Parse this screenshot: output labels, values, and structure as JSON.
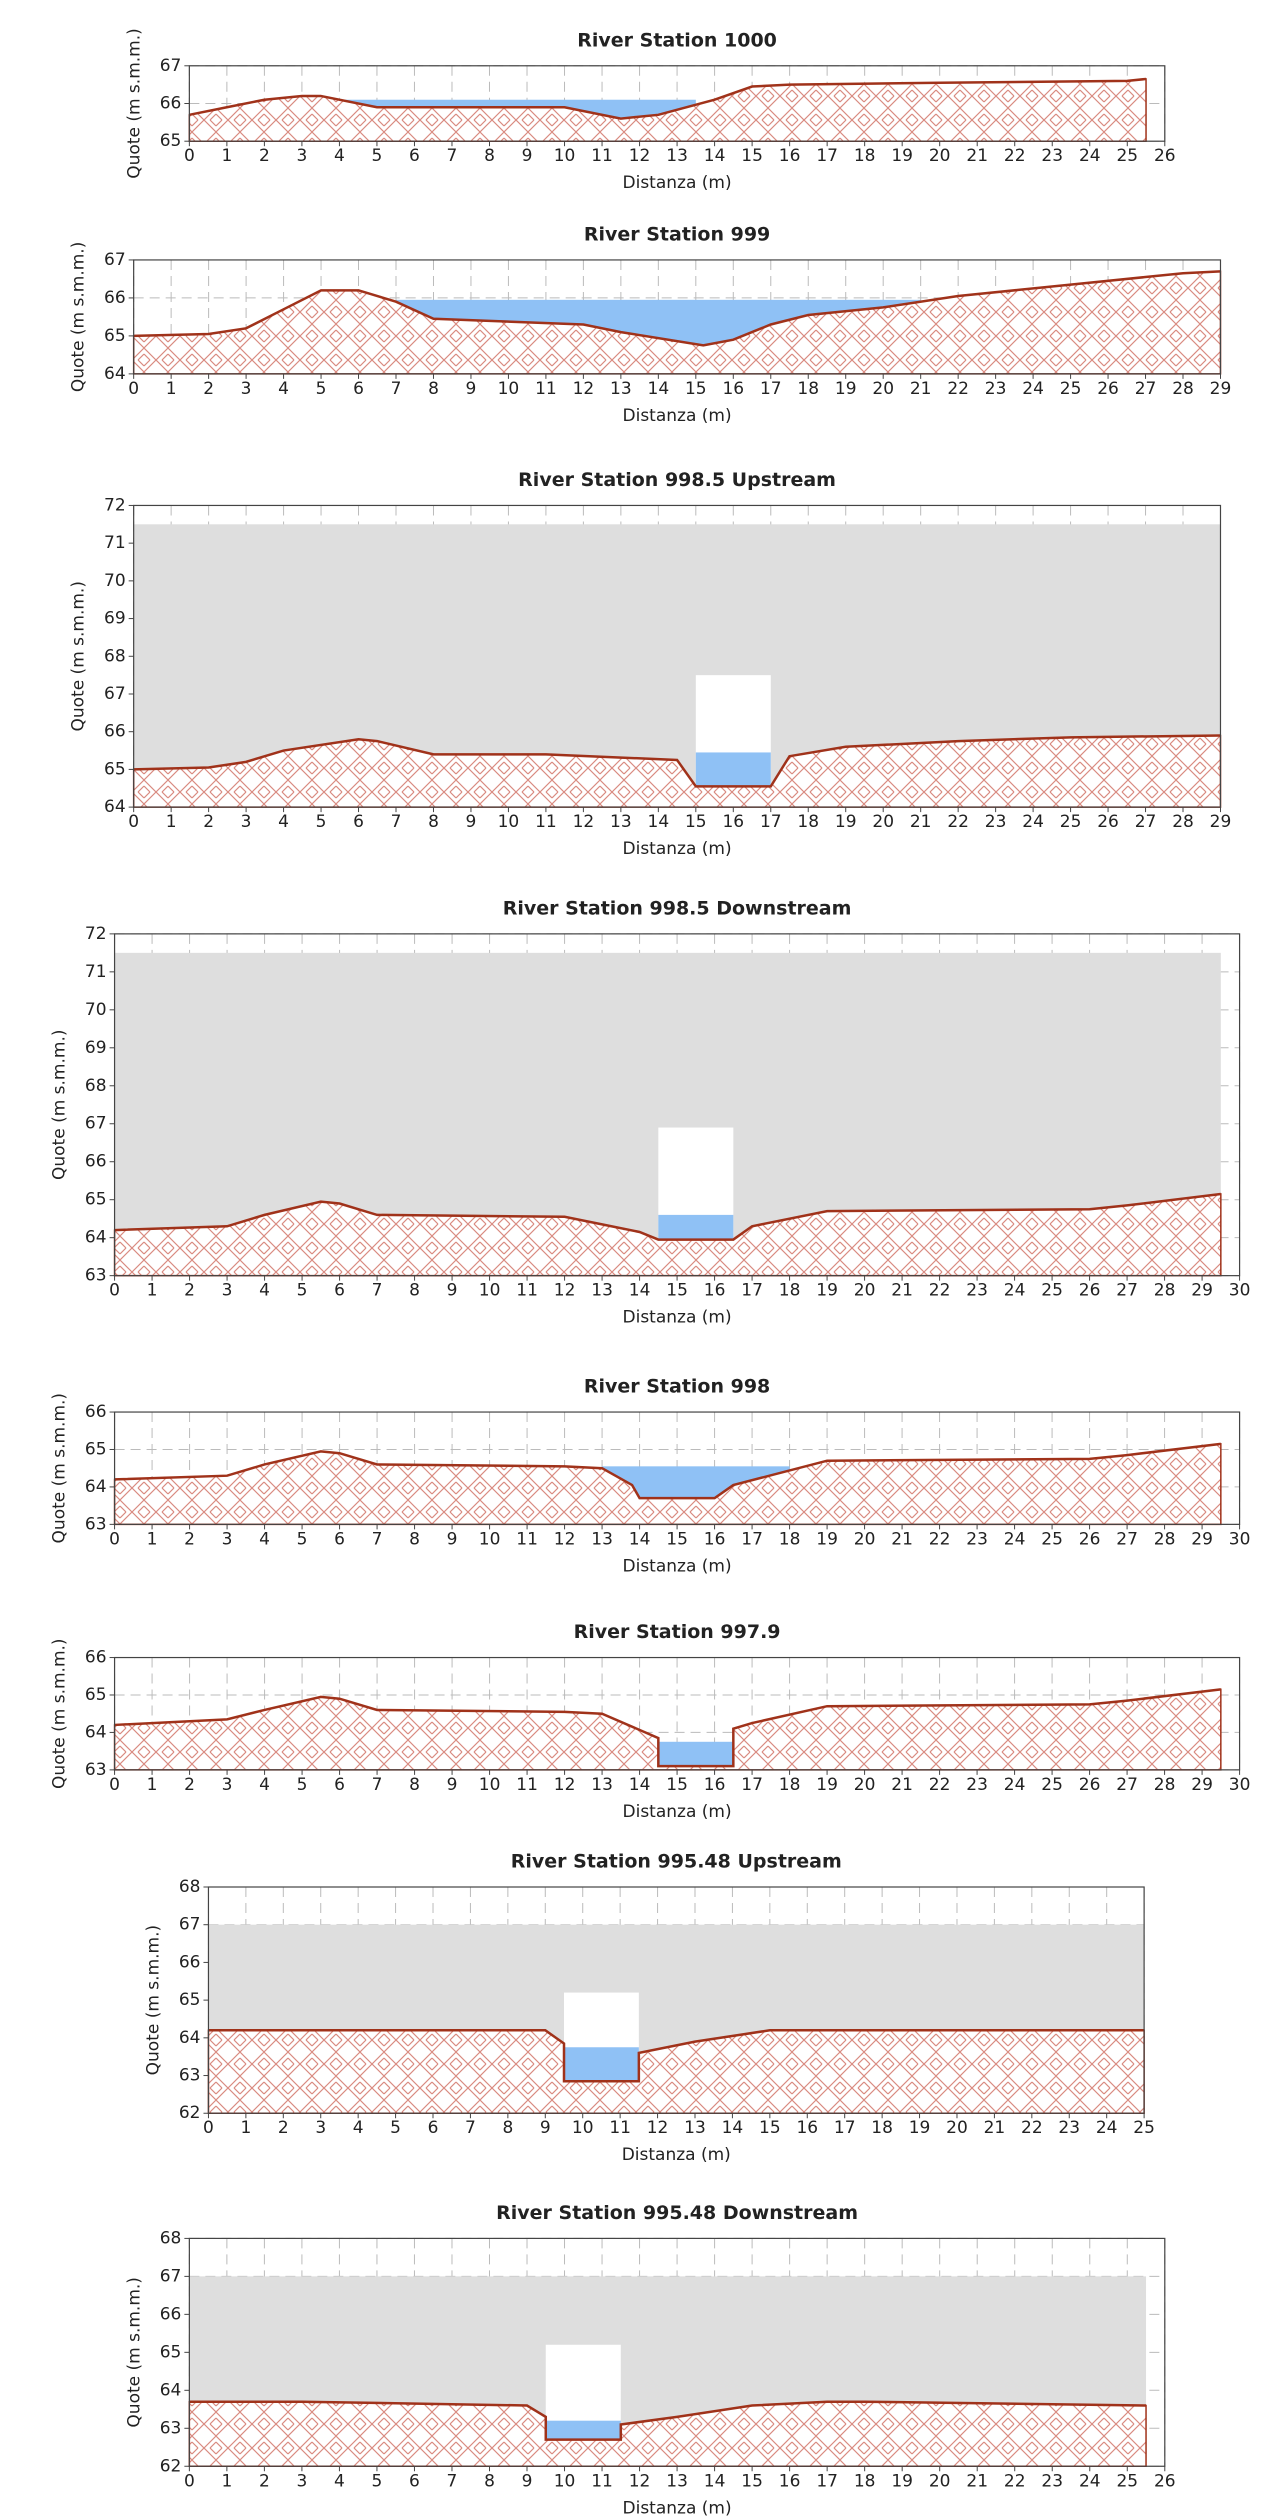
{
  "chart_data": [
    {
      "type": "area",
      "title": "River Station 1000",
      "xlabel": "Distanza  (m)",
      "ylabel": "Quote  (m s.m.m.)",
      "xlim": [
        0,
        26
      ],
      "ylim": [
        65,
        67
      ],
      "xticks": [
        0,
        1,
        2,
        3,
        4,
        5,
        6,
        7,
        8,
        9,
        10,
        11,
        12,
        13,
        14,
        15,
        16,
        17,
        18,
        19,
        20,
        21,
        22,
        23,
        24,
        25,
        26
      ],
      "yticks": [
        65,
        66,
        67
      ],
      "grid": true,
      "x": [
        0,
        1,
        2,
        3,
        3.5,
        5,
        10,
        11.5,
        12.5,
        14,
        15,
        16,
        20,
        25,
        25.5
      ],
      "values": [
        65.7,
        65.9,
        66.1,
        66.2,
        66.2,
        65.9,
        65.9,
        65.6,
        65.7,
        66.1,
        66.45,
        66.5,
        66.55,
        66.6,
        66.65
      ],
      "water": {
        "x": [
          3.9,
          13.5
        ],
        "level": 66.1
      }
    },
    {
      "type": "area",
      "title": "River Station 999",
      "xlabel": "Distanza  (m)",
      "ylabel": "Quote  (m s.m.m.)",
      "xlim": [
        0,
        29
      ],
      "ylim": [
        64,
        67
      ],
      "xticks": [
        0,
        1,
        2,
        3,
        4,
        5,
        6,
        7,
        8,
        9,
        10,
        11,
        12,
        13,
        14,
        15,
        16,
        17,
        18,
        19,
        20,
        21,
        22,
        23,
        24,
        25,
        26,
        27,
        28,
        29
      ],
      "yticks": [
        64,
        65,
        66,
        67
      ],
      "grid": true,
      "x": [
        0,
        2,
        3,
        4,
        5,
        6,
        7,
        8,
        12,
        13,
        15.2,
        16,
        17,
        18,
        20,
        22,
        25,
        28,
        29
      ],
      "values": [
        65.0,
        65.05,
        65.2,
        65.7,
        66.2,
        66.2,
        65.9,
        65.45,
        65.3,
        65.1,
        64.75,
        64.9,
        65.3,
        65.55,
        65.75,
        66.05,
        66.35,
        66.65,
        66.7
      ],
      "water": {
        "x": [
          7,
          21
        ],
        "level": 65.95
      }
    },
    {
      "type": "area",
      "title": "River Station 998.5 Upstream",
      "xlabel": "Distanza  (m)",
      "ylabel": "Quote  (m s.m.m.)",
      "xlim": [
        0,
        29
      ],
      "ylim": [
        64,
        72
      ],
      "xticks": [
        0,
        1,
        2,
        3,
        4,
        5,
        6,
        7,
        8,
        9,
        10,
        11,
        12,
        13,
        14,
        15,
        16,
        17,
        18,
        19,
        20,
        21,
        22,
        23,
        24,
        25,
        26,
        27,
        28,
        29
      ],
      "yticks": [
        64,
        65,
        66,
        67,
        68,
        69,
        70,
        71,
        72
      ],
      "grid": true,
      "x": [
        0,
        2,
        3,
        4,
        6,
        6.5,
        8,
        11,
        14.5,
        15,
        17,
        17.5,
        19,
        22,
        25,
        29
      ],
      "values": [
        65.0,
        65.05,
        65.2,
        65.5,
        65.8,
        65.75,
        65.4,
        65.4,
        65.25,
        64.55,
        64.55,
        65.35,
        65.6,
        65.75,
        65.85,
        65.9
      ],
      "deck": {
        "x": [
          0,
          29
        ],
        "top": 71.5
      },
      "opening": {
        "x": [
          15,
          17
        ],
        "top": 67.5
      },
      "water": {
        "x": [
          15,
          17
        ],
        "level": 65.45
      }
    },
    {
      "type": "area",
      "title": "River Station 998.5 Downstream",
      "xlabel": "Distanza  (m)",
      "ylabel": "Quote  (m s.m.m.)",
      "xlim": [
        0,
        30
      ],
      "ylim": [
        63,
        72
      ],
      "xticks": [
        0,
        1,
        2,
        3,
        4,
        5,
        6,
        7,
        8,
        9,
        10,
        11,
        12,
        13,
        14,
        15,
        16,
        17,
        18,
        19,
        20,
        21,
        22,
        23,
        24,
        25,
        26,
        27,
        28,
        29,
        30
      ],
      "yticks": [
        63,
        64,
        65,
        66,
        67,
        68,
        69,
        70,
        71,
        72
      ],
      "grid": true,
      "x": [
        0,
        3,
        4,
        5.5,
        6,
        7,
        12,
        13,
        14,
        14.5,
        16.5,
        17,
        19,
        26,
        27,
        29.5
      ],
      "values": [
        64.2,
        64.3,
        64.6,
        64.95,
        64.9,
        64.6,
        64.55,
        64.35,
        64.15,
        63.95,
        63.95,
        64.3,
        64.7,
        64.75,
        64.85,
        65.15
      ],
      "deck": {
        "x": [
          0,
          29.5
        ],
        "top": 71.5
      },
      "opening": {
        "x": [
          14.5,
          16.5
        ],
        "top": 66.9
      },
      "water": {
        "x": [
          14.5,
          16.5
        ],
        "level": 64.6
      }
    },
    {
      "type": "area",
      "title": "River Station 998",
      "xlabel": "Distanza  (m)",
      "ylabel": "Quote  (m s.m.m.)",
      "xlim": [
        0,
        30
      ],
      "ylim": [
        63,
        66
      ],
      "xticks": [
        0,
        1,
        2,
        3,
        4,
        5,
        6,
        7,
        8,
        9,
        10,
        11,
        12,
        13,
        14,
        15,
        16,
        17,
        18,
        19,
        20,
        21,
        22,
        23,
        24,
        25,
        26,
        27,
        28,
        29,
        30
      ],
      "yticks": [
        63,
        64,
        65,
        66
      ],
      "grid": true,
      "x": [
        0,
        3,
        4,
        5.5,
        6,
        7,
        12,
        13,
        13.8,
        14,
        16,
        16.5,
        19,
        26,
        27,
        29.5
      ],
      "values": [
        64.2,
        64.3,
        64.6,
        64.95,
        64.9,
        64.6,
        64.55,
        64.5,
        64.05,
        63.7,
        63.7,
        64.05,
        64.7,
        64.75,
        64.85,
        65.15
      ],
      "water": {
        "x": [
          13,
          18
        ],
        "level": 64.55
      }
    },
    {
      "type": "area",
      "title": "River Station 997.9",
      "xlabel": "Distanza  (m)",
      "ylabel": "Quote  (m s.m.m.)",
      "xlim": [
        0,
        30
      ],
      "ylim": [
        63,
        66
      ],
      "xticks": [
        0,
        1,
        2,
        3,
        4,
        5,
        6,
        7,
        8,
        9,
        10,
        11,
        12,
        13,
        14,
        15,
        16,
        17,
        18,
        19,
        20,
        21,
        22,
        23,
        24,
        25,
        26,
        27,
        28,
        29,
        30
      ],
      "yticks": [
        63,
        64,
        65,
        66
      ],
      "grid": true,
      "x": [
        0,
        3,
        4,
        5.5,
        6,
        7,
        12,
        13,
        14.5,
        14.5,
        16.5,
        16.5,
        17,
        19,
        26,
        27,
        29.5
      ],
      "values": [
        64.2,
        64.35,
        64.6,
        64.95,
        64.9,
        64.6,
        64.55,
        64.5,
        63.85,
        63.1,
        63.1,
        64.1,
        64.25,
        64.7,
        64.75,
        64.85,
        65.15
      ],
      "water": {
        "x": [
          14.5,
          16.5
        ],
        "level": 63.75
      }
    },
    {
      "type": "area",
      "title": "River Station 995.48 Upstream",
      "xlabel": "Distanza  (m)",
      "ylabel": "Quote  (m s.m.m.)",
      "xlim": [
        0,
        25
      ],
      "ylim": [
        62,
        68
      ],
      "xticks": [
        0,
        1,
        2,
        3,
        4,
        5,
        6,
        7,
        8,
        9,
        10,
        11,
        12,
        13,
        14,
        15,
        16,
        17,
        18,
        19,
        20,
        21,
        22,
        23,
        24,
        25
      ],
      "yticks": [
        62,
        63,
        64,
        65,
        66,
        67,
        68
      ],
      "grid": true,
      "x": [
        0,
        9,
        9.5,
        9.5,
        11.5,
        11.5,
        13,
        15,
        25
      ],
      "values": [
        64.2,
        64.2,
        63.85,
        62.85,
        62.85,
        63.6,
        63.9,
        64.2,
        64.2
      ],
      "deck": {
        "x": [
          0,
          25
        ],
        "top": 67
      },
      "opening": {
        "x": [
          9.5,
          11.5
        ],
        "top": 65.2
      },
      "water": {
        "x": [
          9.5,
          11.5
        ],
        "level": 63.75
      }
    },
    {
      "type": "area",
      "title": "River Station 995.48 Downstream",
      "xlabel": "Distanza  (m)",
      "ylabel": "Quote  (m s.m.m.)",
      "xlim": [
        0,
        26
      ],
      "ylim": [
        62,
        68
      ],
      "xticks": [
        0,
        1,
        2,
        3,
        4,
        5,
        6,
        7,
        8,
        9,
        10,
        11,
        12,
        13,
        14,
        15,
        16,
        17,
        18,
        19,
        20,
        21,
        22,
        23,
        24,
        25,
        26
      ],
      "yticks": [
        62,
        63,
        64,
        65,
        66,
        67,
        68
      ],
      "grid": true,
      "x": [
        0,
        3,
        9,
        9.5,
        9.5,
        11.5,
        11.5,
        13,
        15,
        17,
        18,
        25.5
      ],
      "values": [
        63.7,
        63.7,
        63.6,
        63.3,
        62.7,
        62.7,
        63.1,
        63.3,
        63.6,
        63.7,
        63.7,
        63.6
      ],
      "deck": {
        "x": [
          0,
          25.5
        ],
        "top": 67
      },
      "opening": {
        "x": [
          9.5,
          11.5
        ],
        "top": 65.2
      },
      "water": {
        "x": [
          9.5,
          11.5
        ],
        "level": 63.2
      }
    }
  ]
}
